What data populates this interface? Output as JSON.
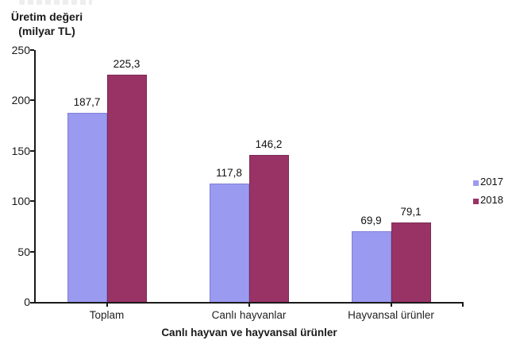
{
  "title": {
    "line1": "Üretim değeri",
    "line2": "(milyar TL)"
  },
  "chart_data": {
    "type": "bar",
    "title": "Üretim değeri (milyar TL)",
    "categories": [
      "Toplam",
      "Canlı hayvanlar",
      "Hayvansal ürünler"
    ],
    "series": [
      {
        "name": "2017",
        "color": "#9A9AF0",
        "border_color": "#8080D8",
        "values": [
          187.7,
          117.8,
          69.9
        ],
        "value_labels": [
          "187,7",
          "117,8",
          "69,9"
        ]
      },
      {
        "name": "2018",
        "color": "#993366",
        "border_color": "#7D2A54",
        "values": [
          225.3,
          146.2,
          79.1
        ],
        "value_labels": [
          "225,3",
          "146,2",
          "79,1"
        ]
      }
    ],
    "xlabel": "Canlı hayvan ve hayvansal ürünler",
    "ylabel": "Üretim değeri (milyar TL)",
    "ylim": [
      0,
      250
    ],
    "yticks": [
      0,
      50,
      100,
      150,
      200,
      250
    ],
    "grid": false,
    "legend_position": "right",
    "axis_color": "#1a1a1a"
  }
}
